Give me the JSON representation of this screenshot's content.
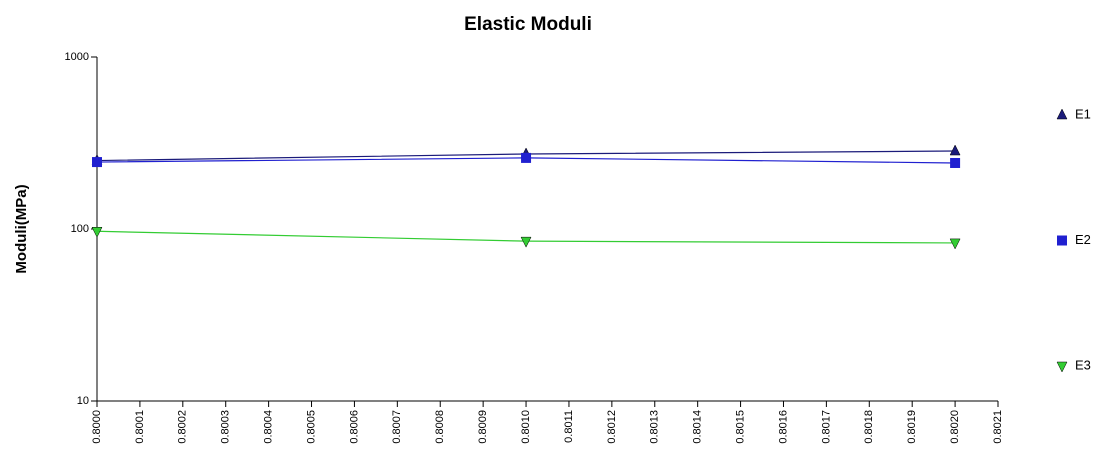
{
  "chart_data": {
    "type": "line",
    "title": "Elastic Moduli",
    "y_label": "Moduli(MPa)",
    "x": [
      0.8,
      0.801,
      0.802
    ],
    "series": [
      {
        "name": "E1",
        "color": "#1b1b7a",
        "marker": "triangle-up",
        "values": [
          250,
          273,
          284
        ]
      },
      {
        "name": "E2",
        "color": "#2020d0",
        "marker": "square",
        "values": [
          245,
          259,
          242
        ]
      },
      {
        "name": "E3",
        "color": "#33cc33",
        "marker": "triangle-down",
        "values": [
          97,
          85,
          83
        ]
      }
    ],
    "xlim": [
      0.8,
      0.8021
    ],
    "xticks": [
      {
        "value": 0.8,
        "label": "0.8000"
      },
      {
        "value": 0.8001,
        "label": "0.8001"
      },
      {
        "value": 0.8002,
        "label": "0.8002"
      },
      {
        "value": 0.8003,
        "label": "0.8003"
      },
      {
        "value": 0.8004,
        "label": "0.8004"
      },
      {
        "value": 0.8005,
        "label": "0.8005"
      },
      {
        "value": 0.8006,
        "label": "0.8006"
      },
      {
        "value": 0.8007,
        "label": "0.8007"
      },
      {
        "value": 0.8008,
        "label": "0.8008"
      },
      {
        "value": 0.8009,
        "label": "0.8009"
      },
      {
        "value": 0.801,
        "label": "0.8010"
      },
      {
        "value": 0.8011,
        "label": "0.8011"
      },
      {
        "value": 0.8012,
        "label": "0.8012"
      },
      {
        "value": 0.8013,
        "label": "0.8013"
      },
      {
        "value": 0.8014,
        "label": "0.8014"
      },
      {
        "value": 0.8015,
        "label": "0.8015"
      },
      {
        "value": 0.8016,
        "label": "0.8016"
      },
      {
        "value": 0.8017,
        "label": "0.8017"
      },
      {
        "value": 0.8018,
        "label": "0.8018"
      },
      {
        "value": 0.8019,
        "label": "0.8019"
      },
      {
        "value": 0.802,
        "label": "0.8020"
      },
      {
        "value": 0.8021,
        "label": "0.8021"
      }
    ],
    "ylim": [
      10,
      1000
    ],
    "yticks": [
      10,
      100,
      1000
    ],
    "y_log": true,
    "grid": false
  }
}
